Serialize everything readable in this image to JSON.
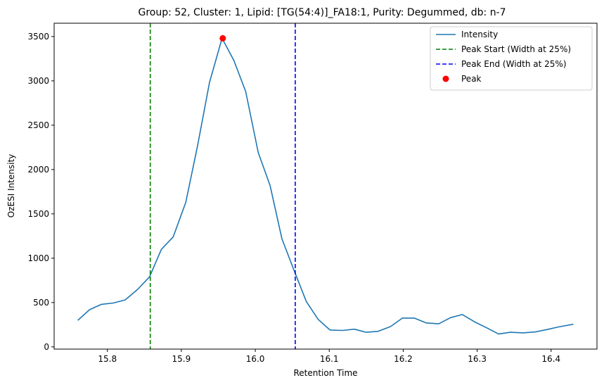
{
  "chart_data": {
    "type": "line",
    "title": "Group: 52, Cluster: 1, Lipid: [TG(54:4)]_FA18:1, Purity: Degummed, db: n-7",
    "xlabel": "Retention Time",
    "ylabel": "OzESI Intensity",
    "xlim": [
      15.728,
      16.462
    ],
    "ylim": [
      -25,
      3650
    ],
    "xticks": [
      15.8,
      15.9,
      16.0,
      16.1,
      16.2,
      16.3,
      16.4
    ],
    "xtick_labels": [
      "15.8",
      "15.9",
      "16.0",
      "16.1",
      "16.2",
      "16.3",
      "16.4"
    ],
    "yticks": [
      0,
      500,
      1000,
      1500,
      2000,
      2500,
      3000,
      3500
    ],
    "ytick_labels": [
      "0",
      "500",
      "1000",
      "1500",
      "2000",
      "2500",
      "3000",
      "3500"
    ],
    "grid": false,
    "legend_position": "top-right",
    "series": [
      {
        "name": "Intensity",
        "color": "#1f77b4",
        "x": [
          15.76,
          15.776,
          15.792,
          15.808,
          15.824,
          15.841,
          15.857,
          15.873,
          15.889,
          15.906,
          15.922,
          15.938,
          15.955,
          15.971,
          15.987,
          16.004,
          16.02,
          16.036,
          16.052,
          16.069,
          16.085,
          16.101,
          16.118,
          16.134,
          16.15,
          16.166,
          16.183,
          16.199,
          16.215,
          16.231,
          16.248,
          16.264,
          16.28,
          16.297,
          16.313,
          16.329,
          16.345,
          16.362,
          16.378,
          16.394,
          16.41,
          16.43
        ],
        "y": [
          300,
          420,
          480,
          495,
          530,
          650,
          790,
          1100,
          1240,
          1630,
          2270,
          2980,
          3480,
          3230,
          2880,
          2190,
          1820,
          1220,
          870,
          510,
          310,
          190,
          185,
          200,
          165,
          175,
          230,
          325,
          325,
          270,
          260,
          330,
          365,
          280,
          215,
          145,
          165,
          158,
          168,
          195,
          225,
          255
        ]
      }
    ],
    "vlines": [
      {
        "name": "Peak Start (Width at 25%)",
        "x": 15.858,
        "color": "#008000",
        "style": "dashed"
      },
      {
        "name": "Peak End (Width at 25%)",
        "x": 16.054,
        "color": "#0000ff",
        "style": "dashed"
      }
    ],
    "peak": {
      "name": "Peak",
      "x": 15.956,
      "y": 3480,
      "color": "#ff0000"
    },
    "legend": [
      {
        "label": "Intensity",
        "kind": "line",
        "color": "#1f77b4"
      },
      {
        "label": "Peak Start (Width at 25%)",
        "kind": "dashed",
        "color": "#008000"
      },
      {
        "label": "Peak End (Width at 25%)",
        "kind": "dashed",
        "color": "#0000ff"
      },
      {
        "label": "Peak",
        "kind": "marker",
        "color": "#ff0000"
      }
    ]
  }
}
